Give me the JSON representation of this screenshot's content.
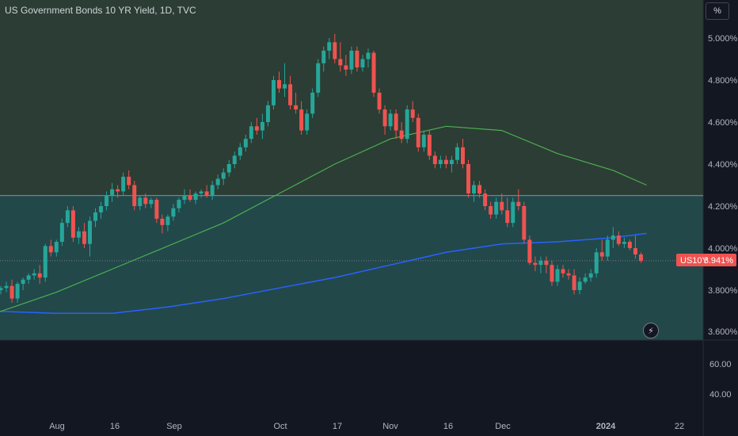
{
  "header": {
    "title": "US Government Bonds 10 YR Yield, 1D, TVC",
    "unit_button": "%"
  },
  "price_badge": {
    "symbol": "US10Y",
    "value": "3.941%"
  },
  "colors": {
    "background": "#131722",
    "up": "#26a69a",
    "down": "#ef5350",
    "ma_short": "#4caf50",
    "ma_long": "#2962ff",
    "hline": "#5ea8d8",
    "zone_upper": "#2b3d34",
    "zone_lower": "#22484a",
    "badge": "#ef5350"
  },
  "chart_data": {
    "type": "candlestick",
    "title": "US Government Bonds 10 YR Yield, 1D, TVC",
    "x_tick_labels": [
      "Aug",
      "16",
      "Sep",
      "Oct",
      "17",
      "Nov",
      "16",
      "Dec",
      "2024",
      "22"
    ],
    "y_tick_labels": [
      "5.000%",
      "4.800%",
      "4.600%",
      "4.400%",
      "4.200%",
      "4.000%",
      "3.800%",
      "3.600%"
    ],
    "ylim": [
      3.56,
      5.1
    ],
    "horizontal_line": 4.25,
    "candles": [
      {
        "o": 3.8,
        "h": 3.82,
        "l": 3.78,
        "c": 3.81
      },
      {
        "o": 3.81,
        "h": 3.84,
        "l": 3.79,
        "c": 3.82
      },
      {
        "o": 3.82,
        "h": 3.85,
        "l": 3.74,
        "c": 3.76
      },
      {
        "o": 3.76,
        "h": 3.84,
        "l": 3.74,
        "c": 3.83
      },
      {
        "o": 3.83,
        "h": 3.86,
        "l": 3.8,
        "c": 3.85
      },
      {
        "o": 3.85,
        "h": 3.88,
        "l": 3.83,
        "c": 3.87
      },
      {
        "o": 3.87,
        "h": 3.9,
        "l": 3.85,
        "c": 3.88
      },
      {
        "o": 3.88,
        "h": 3.92,
        "l": 3.83,
        "c": 3.86
      },
      {
        "o": 3.86,
        "h": 4.02,
        "l": 3.84,
        "c": 4.01
      },
      {
        "o": 4.01,
        "h": 4.04,
        "l": 3.96,
        "c": 3.98
      },
      {
        "o": 3.98,
        "h": 4.04,
        "l": 3.96,
        "c": 4.03
      },
      {
        "o": 4.03,
        "h": 4.14,
        "l": 4.01,
        "c": 4.12
      },
      {
        "o": 4.12,
        "h": 4.2,
        "l": 4.1,
        "c": 4.18
      },
      {
        "o": 4.18,
        "h": 4.2,
        "l": 4.03,
        "c": 4.05
      },
      {
        "o": 4.05,
        "h": 4.1,
        "l": 4.02,
        "c": 4.08
      },
      {
        "o": 4.08,
        "h": 4.12,
        "l": 4.0,
        "c": 4.02
      },
      {
        "o": 4.02,
        "h": 4.15,
        "l": 3.96,
        "c": 4.13
      },
      {
        "o": 4.13,
        "h": 4.19,
        "l": 4.1,
        "c": 4.17
      },
      {
        "o": 4.17,
        "h": 4.22,
        "l": 4.14,
        "c": 4.2
      },
      {
        "o": 4.2,
        "h": 4.27,
        "l": 4.18,
        "c": 4.25
      },
      {
        "o": 4.25,
        "h": 4.31,
        "l": 4.22,
        "c": 4.28
      },
      {
        "o": 4.28,
        "h": 4.3,
        "l": 4.24,
        "c": 4.27
      },
      {
        "o": 4.27,
        "h": 4.36,
        "l": 4.25,
        "c": 4.34
      },
      {
        "o": 4.34,
        "h": 4.37,
        "l": 4.28,
        "c": 4.3
      },
      {
        "o": 4.3,
        "h": 4.32,
        "l": 4.18,
        "c": 4.2
      },
      {
        "o": 4.2,
        "h": 4.25,
        "l": 4.18,
        "c": 4.24
      },
      {
        "o": 4.24,
        "h": 4.26,
        "l": 4.19,
        "c": 4.21
      },
      {
        "o": 4.21,
        "h": 4.24,
        "l": 4.19,
        "c": 4.23
      },
      {
        "o": 4.23,
        "h": 4.24,
        "l": 4.12,
        "c": 4.14
      },
      {
        "o": 4.14,
        "h": 4.16,
        "l": 4.07,
        "c": 4.11
      },
      {
        "o": 4.11,
        "h": 4.16,
        "l": 4.08,
        "c": 4.15
      },
      {
        "o": 4.15,
        "h": 4.21,
        "l": 4.13,
        "c": 4.19
      },
      {
        "o": 4.19,
        "h": 4.24,
        "l": 4.17,
        "c": 4.23
      },
      {
        "o": 4.23,
        "h": 4.28,
        "l": 4.21,
        "c": 4.25
      },
      {
        "o": 4.25,
        "h": 4.28,
        "l": 4.22,
        "c": 4.23
      },
      {
        "o": 4.23,
        "h": 4.27,
        "l": 4.21,
        "c": 4.26
      },
      {
        "o": 4.26,
        "h": 4.28,
        "l": 4.24,
        "c": 4.27
      },
      {
        "o": 4.27,
        "h": 4.3,
        "l": 4.24,
        "c": 4.25
      },
      {
        "o": 4.25,
        "h": 4.32,
        "l": 4.23,
        "c": 4.3
      },
      {
        "o": 4.3,
        "h": 4.35,
        "l": 4.28,
        "c": 4.33
      },
      {
        "o": 4.33,
        "h": 4.38,
        "l": 4.3,
        "c": 4.36
      },
      {
        "o": 4.36,
        "h": 4.42,
        "l": 4.34,
        "c": 4.4
      },
      {
        "o": 4.4,
        "h": 4.46,
        "l": 4.38,
        "c": 4.44
      },
      {
        "o": 4.44,
        "h": 4.5,
        "l": 4.42,
        "c": 4.48
      },
      {
        "o": 4.48,
        "h": 4.54,
        "l": 4.46,
        "c": 4.52
      },
      {
        "o": 4.52,
        "h": 4.6,
        "l": 4.5,
        "c": 4.58
      },
      {
        "o": 4.58,
        "h": 4.62,
        "l": 4.54,
        "c": 4.56
      },
      {
        "o": 4.56,
        "h": 4.64,
        "l": 4.52,
        "c": 4.6
      },
      {
        "o": 4.6,
        "h": 4.7,
        "l": 4.58,
        "c": 4.68
      },
      {
        "o": 4.68,
        "h": 4.82,
        "l": 4.66,
        "c": 4.8
      },
      {
        "o": 4.8,
        "h": 4.84,
        "l": 4.74,
        "c": 4.76
      },
      {
        "o": 4.76,
        "h": 4.88,
        "l": 4.72,
        "c": 4.78
      },
      {
        "o": 4.78,
        "h": 4.82,
        "l": 4.66,
        "c": 4.68
      },
      {
        "o": 4.68,
        "h": 4.74,
        "l": 4.64,
        "c": 4.66
      },
      {
        "o": 4.66,
        "h": 4.7,
        "l": 4.54,
        "c": 4.56
      },
      {
        "o": 4.56,
        "h": 4.66,
        "l": 4.54,
        "c": 4.64
      },
      {
        "o": 4.64,
        "h": 4.76,
        "l": 4.62,
        "c": 4.74
      },
      {
        "o": 4.74,
        "h": 4.9,
        "l": 4.72,
        "c": 4.88
      },
      {
        "o": 4.88,
        "h": 4.96,
        "l": 4.84,
        "c": 4.94
      },
      {
        "o": 4.94,
        "h": 5.0,
        "l": 4.9,
        "c": 4.98
      },
      {
        "o": 4.98,
        "h": 5.02,
        "l": 4.88,
        "c": 4.9
      },
      {
        "o": 4.9,
        "h": 4.98,
        "l": 4.84,
        "c": 4.87
      },
      {
        "o": 4.87,
        "h": 4.92,
        "l": 4.82,
        "c": 4.85
      },
      {
        "o": 4.85,
        "h": 4.96,
        "l": 4.83,
        "c": 4.94
      },
      {
        "o": 4.94,
        "h": 4.96,
        "l": 4.84,
        "c": 4.86
      },
      {
        "o": 4.86,
        "h": 4.92,
        "l": 4.84,
        "c": 4.9
      },
      {
        "o": 4.9,
        "h": 4.95,
        "l": 4.86,
        "c": 4.93
      },
      {
        "o": 4.93,
        "h": 4.94,
        "l": 4.72,
        "c": 4.74
      },
      {
        "o": 4.74,
        "h": 4.76,
        "l": 4.64,
        "c": 4.66
      },
      {
        "o": 4.66,
        "h": 4.68,
        "l": 4.54,
        "c": 4.58
      },
      {
        "o": 4.58,
        "h": 4.66,
        "l": 4.56,
        "c": 4.64
      },
      {
        "o": 4.64,
        "h": 4.66,
        "l": 4.52,
        "c": 4.56
      },
      {
        "o": 4.56,
        "h": 4.6,
        "l": 4.5,
        "c": 4.52
      },
      {
        "o": 4.52,
        "h": 4.68,
        "l": 4.5,
        "c": 4.66
      },
      {
        "o": 4.66,
        "h": 4.7,
        "l": 4.6,
        "c": 4.62
      },
      {
        "o": 4.62,
        "h": 4.64,
        "l": 4.46,
        "c": 4.48
      },
      {
        "o": 4.48,
        "h": 4.56,
        "l": 4.46,
        "c": 4.54
      },
      {
        "o": 4.54,
        "h": 4.56,
        "l": 4.42,
        "c": 4.44
      },
      {
        "o": 4.44,
        "h": 4.46,
        "l": 4.38,
        "c": 4.4
      },
      {
        "o": 4.4,
        "h": 4.44,
        "l": 4.38,
        "c": 4.42
      },
      {
        "o": 4.42,
        "h": 4.44,
        "l": 4.38,
        "c": 4.4
      },
      {
        "o": 4.4,
        "h": 4.44,
        "l": 4.36,
        "c": 4.42
      },
      {
        "o": 4.42,
        "h": 4.5,
        "l": 4.4,
        "c": 4.48
      },
      {
        "o": 4.48,
        "h": 4.52,
        "l": 4.38,
        "c": 4.4
      },
      {
        "o": 4.4,
        "h": 4.42,
        "l": 4.24,
        "c": 4.26
      },
      {
        "o": 4.26,
        "h": 4.32,
        "l": 4.22,
        "c": 4.3
      },
      {
        "o": 4.3,
        "h": 4.32,
        "l": 4.24,
        "c": 4.26
      },
      {
        "o": 4.26,
        "h": 4.28,
        "l": 4.18,
        "c": 4.2
      },
      {
        "o": 4.2,
        "h": 4.22,
        "l": 4.14,
        "c": 4.16
      },
      {
        "o": 4.16,
        "h": 4.24,
        "l": 4.14,
        "c": 4.22
      },
      {
        "o": 4.22,
        "h": 4.26,
        "l": 4.16,
        "c": 4.18
      },
      {
        "o": 4.18,
        "h": 4.24,
        "l": 4.1,
        "c": 4.12
      },
      {
        "o": 4.12,
        "h": 4.24,
        "l": 4.1,
        "c": 4.22
      },
      {
        "o": 4.22,
        "h": 4.28,
        "l": 4.18,
        "c": 4.2
      },
      {
        "o": 4.2,
        "h": 4.22,
        "l": 4.02,
        "c": 4.04
      },
      {
        "o": 4.04,
        "h": 4.06,
        "l": 3.92,
        "c": 3.93
      },
      {
        "o": 3.93,
        "h": 3.96,
        "l": 3.89,
        "c": 3.92
      },
      {
        "o": 3.92,
        "h": 3.96,
        "l": 3.88,
        "c": 3.94
      },
      {
        "o": 3.94,
        "h": 3.96,
        "l": 3.88,
        "c": 3.92
      },
      {
        "o": 3.92,
        "h": 3.94,
        "l": 3.82,
        "c": 3.84
      },
      {
        "o": 3.84,
        "h": 3.92,
        "l": 3.82,
        "c": 3.9
      },
      {
        "o": 3.9,
        "h": 3.92,
        "l": 3.86,
        "c": 3.88
      },
      {
        "o": 3.88,
        "h": 3.9,
        "l": 3.85,
        "c": 3.87
      },
      {
        "o": 3.87,
        "h": 3.9,
        "l": 3.78,
        "c": 3.8
      },
      {
        "o": 3.8,
        "h": 3.86,
        "l": 3.78,
        "c": 3.84
      },
      {
        "o": 3.84,
        "h": 3.88,
        "l": 3.83,
        "c": 3.86
      },
      {
        "o": 3.86,
        "h": 3.9,
        "l": 3.84,
        "c": 3.88
      },
      {
        "o": 3.88,
        "h": 4.0,
        "l": 3.86,
        "c": 3.98
      },
      {
        "o": 3.98,
        "h": 4.04,
        "l": 3.94,
        "c": 3.96
      },
      {
        "o": 3.96,
        "h": 4.06,
        "l": 3.94,
        "c": 4.04
      },
      {
        "o": 4.04,
        "h": 4.1,
        "l": 4.0,
        "c": 4.06
      },
      {
        "o": 4.06,
        "h": 4.08,
        "l": 4.01,
        "c": 4.02
      },
      {
        "o": 4.02,
        "h": 4.05,
        "l": 4.0,
        "c": 4.03
      },
      {
        "o": 4.03,
        "h": 4.04,
        "l": 3.99,
        "c": 4.0
      },
      {
        "o": 4.0,
        "h": 4.06,
        "l": 3.95,
        "c": 3.97
      },
      {
        "o": 3.97,
        "h": 3.98,
        "l": 3.93,
        "c": 3.94
      }
    ],
    "ma_short": {
      "x_index": [
        -1,
        10,
        20,
        30,
        40,
        50,
        60,
        70,
        80,
        90,
        100,
        110,
        116
      ],
      "values": [
        3.69,
        3.79,
        3.9,
        4.01,
        4.12,
        4.26,
        4.4,
        4.52,
        4.58,
        4.56,
        4.45,
        4.37,
        4.3
      ]
    },
    "ma_long": {
      "x_index": [
        -1,
        10,
        20,
        30,
        40,
        50,
        60,
        70,
        80,
        90,
        100,
        110,
        116
      ],
      "values": [
        3.7,
        3.69,
        3.69,
        3.72,
        3.76,
        3.81,
        3.86,
        3.92,
        3.98,
        4.02,
        4.03,
        4.05,
        4.07
      ]
    },
    "indicator_pane": {
      "y_tick_labels": [
        "60.00",
        "40.00"
      ]
    }
  }
}
